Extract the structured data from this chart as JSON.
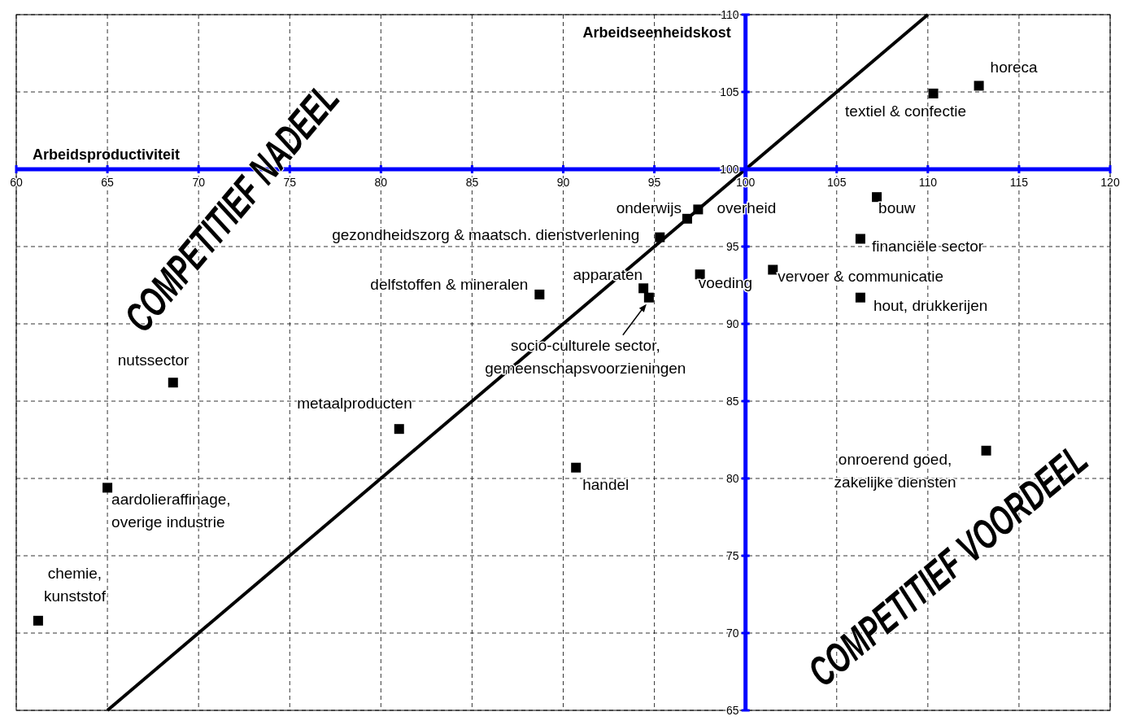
{
  "chart_data": {
    "type": "scatter",
    "xlabel": "Arbeidsproductiviteit",
    "ylabel": "Arbeidseenheidskost",
    "xlim": [
      60,
      120
    ],
    "ylim": [
      65,
      110
    ],
    "xticks": [
      60,
      65,
      70,
      75,
      80,
      85,
      90,
      95,
      100,
      105,
      110,
      115,
      120
    ],
    "yticks": [
      65,
      70,
      75,
      80,
      85,
      90,
      95,
      100,
      105,
      110
    ],
    "grid": true,
    "series": [
      {
        "type": "scatter",
        "color": "#000000",
        "marker": "square",
        "x": [
          112.8,
          110.3,
          107.2,
          97.4,
          96.8,
          95.3,
          106.3,
          97.5,
          101.5,
          94.4,
          94.7,
          88.7,
          106.3,
          68.6,
          81.0,
          90.7,
          113.2,
          65.0,
          61.2
        ],
        "values": [
          105.4,
          104.9,
          98.2,
          97.4,
          96.8,
          95.6,
          95.5,
          93.2,
          93.5,
          92.3,
          91.7,
          91.9,
          91.7,
          86.2,
          83.2,
          80.7,
          81.8,
          79.4,
          70.8
        ]
      },
      {
        "type": "line",
        "color": "#000000",
        "marker": "none",
        "x": [
          65,
          110
        ],
        "values": [
          65,
          110
        ]
      }
    ],
    "annotations": [
      {
        "text": "horeca",
        "x": 112.8,
        "y": 105.4
      },
      {
        "text": "textiel & confectie",
        "x": 110.3,
        "y": 104.9
      },
      {
        "text": "bouw",
        "x": 107.2,
        "y": 98.2
      },
      {
        "text": "overheid",
        "x": 97.4,
        "y": 97.4
      },
      {
        "text": "onderwijs",
        "x": 96.8,
        "y": 96.8
      },
      {
        "text": "gezondheidszorg & maatsch. dienstverlening",
        "x": 95.3,
        "y": 95.6
      },
      {
        "text": "financiële sector",
        "x": 106.3,
        "y": 95.5
      },
      {
        "text": "voeding",
        "x": 97.5,
        "y": 93.2
      },
      {
        "text": "vervoer & communicatie",
        "x": 101.5,
        "y": 93.5
      },
      {
        "text": "apparaten",
        "x": 94.4,
        "y": 92.3
      },
      {
        "text": "socio-culturele sector,\ngemeenschapsvoorzieningen",
        "x": 94.7,
        "y": 91.7
      },
      {
        "text": "delfstoffen & mineralen",
        "x": 88.7,
        "y": 91.9
      },
      {
        "text": "hout, drukkerijen",
        "x": 106.3,
        "y": 91.7
      },
      {
        "text": "nutssector",
        "x": 68.6,
        "y": 86.2
      },
      {
        "text": "metaalproducten",
        "x": 81.0,
        "y": 83.2
      },
      {
        "text": "handel",
        "x": 90.7,
        "y": 80.7
      },
      {
        "text": "onroerend goed,\nzakelijke diensten",
        "x": 113.2,
        "y": 81.8
      },
      {
        "text": "aardolieraffinage,\noverige industrie",
        "x": 65.0,
        "y": 79.4
      },
      {
        "text": "chemie,\nkunststof",
        "x": 61.2,
        "y": 70.8
      },
      "COMPETITIEF NADEEL",
      "COMPETITIEF VOORDEEL"
    ]
  }
}
